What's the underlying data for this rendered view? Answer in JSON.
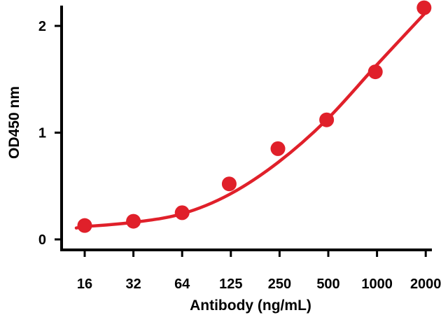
{
  "chart_data": {
    "type": "scatter",
    "x_scale": "log2",
    "xlabel": "Antibody (ng/mL)",
    "ylabel": "OD450 nm",
    "ylim": [
      0,
      2.2
    ],
    "x_ticks": [
      "16",
      "32",
      "64",
      "125",
      "250",
      "500",
      "1000",
      "2000"
    ],
    "y_ticks": [
      "0",
      "1",
      "2"
    ],
    "points": [
      {
        "x": 16,
        "y": 0.13
      },
      {
        "x": 32,
        "y": 0.17
      },
      {
        "x": 64,
        "y": 0.25
      },
      {
        "x": 125,
        "y": 0.52
      },
      {
        "x": 250,
        "y": 0.85
      },
      {
        "x": 500,
        "y": 1.12
      },
      {
        "x": 1000,
        "y": 1.57
      },
      {
        "x": 2000,
        "y": 2.17
      }
    ],
    "fit_curve": {
      "type": "sigmoidal",
      "points": [
        {
          "x": 16,
          "y": 0.12
        },
        {
          "x": 32,
          "y": 0.16
        },
        {
          "x": 64,
          "y": 0.24
        },
        {
          "x": 125,
          "y": 0.42
        },
        {
          "x": 250,
          "y": 0.72
        },
        {
          "x": 500,
          "y": 1.12
        },
        {
          "x": 1000,
          "y": 1.62
        },
        {
          "x": 2000,
          "y": 2.11
        }
      ]
    },
    "grid": false,
    "colors": {
      "series": "#e0202a",
      "axis": "#000000"
    }
  }
}
